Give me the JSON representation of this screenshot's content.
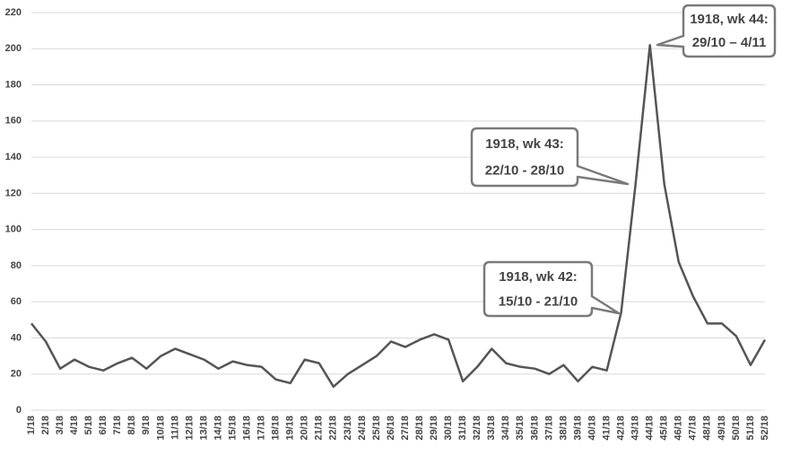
{
  "chart_data": {
    "type": "line",
    "categories": [
      "1/18",
      "2/18",
      "3/18",
      "4/18",
      "5/18",
      "6/18",
      "7/18",
      "8/18",
      "9/18",
      "10/18",
      "11/18",
      "12/18",
      "13/18",
      "14/18",
      "15/18",
      "16/18",
      "17/18",
      "18/18",
      "19/18",
      "20/18",
      "21/18",
      "22/18",
      "23/18",
      "24/18",
      "25/18",
      "26/18",
      "27/18",
      "28/18",
      "29/18",
      "30/18",
      "31/18",
      "32/18",
      "33/18",
      "34/18",
      "35/18",
      "36/18",
      "37/18",
      "38/18",
      "39/18",
      "40/18",
      "41/18",
      "42/18",
      "43/18",
      "44/18",
      "45/18",
      "46/18",
      "47/18",
      "48/18",
      "49/18",
      "50/18",
      "51/18",
      "52/18"
    ],
    "values": [
      48,
      38,
      23,
      28,
      24,
      22,
      26,
      29,
      23,
      30,
      34,
      31,
      28,
      23,
      27,
      25,
      24,
      17,
      15,
      28,
      26,
      13,
      20,
      25,
      30,
      38,
      35,
      39,
      42,
      39,
      16,
      24,
      34,
      26,
      24,
      23,
      20,
      25,
      16,
      24,
      22,
      54,
      125,
      202,
      125,
      82,
      63,
      48,
      48,
      41,
      25,
      39
    ],
    "color": "#555555",
    "ylim": [
      0,
      220
    ],
    "yticks": [
      0,
      20,
      40,
      60,
      80,
      100,
      120,
      140,
      160,
      180,
      200,
      220
    ],
    "grid": true,
    "annotations": [
      {
        "lines": [
          "1918, wk 44:",
          "29/10 – 4/11"
        ]
      },
      {
        "lines": [
          "1918, wk 43:",
          "22/10 - 28/10"
        ]
      },
      {
        "lines": [
          "1918, wk 42:",
          "15/10 - 21/10"
        ]
      }
    ]
  }
}
